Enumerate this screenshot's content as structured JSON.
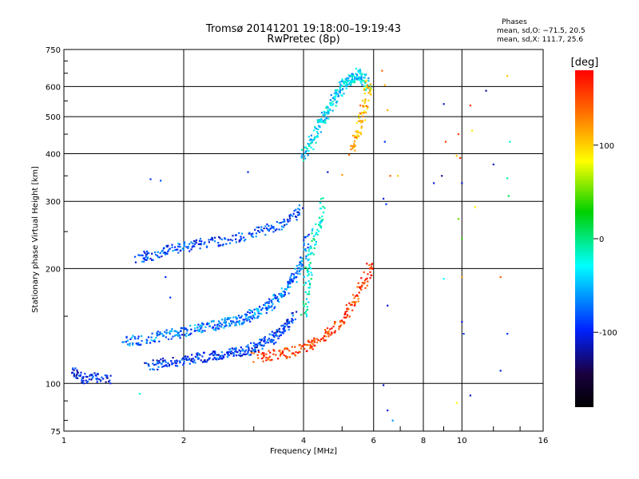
{
  "chart_data": {
    "type": "scatter",
    "title": "Tromsø 20141201 19:18:00–19:19:43",
    "subtitle": "RwPretec (8p)",
    "xlabel": "Frequency [MHz]",
    "ylabel": "Stationary phase Virtual Height [km]",
    "x_scale": "log",
    "y_scale": "log",
    "xlim": [
      1,
      16
    ],
    "ylim": [
      75,
      750
    ],
    "x_ticks": [
      1,
      2,
      4,
      6,
      8,
      10,
      16
    ],
    "y_ticks": [
      75,
      100,
      200,
      300,
      400,
      500,
      600,
      750
    ],
    "stats_title": "Phases",
    "stats_lines": [
      "mean, sd,O: −71.5, 20.5",
      "mean, sd,X: 111.7, 25.6"
    ],
    "colorbar": {
      "label": "[deg]",
      "ticks": [
        100,
        0,
        -100
      ],
      "range": [
        -180,
        180
      ]
    },
    "traces": [
      {
        "f": [
          1.05,
          1.08,
          1.12,
          1.18,
          1.25,
          1.3
        ],
        "h": [
          108,
          104,
          103,
          104,
          103,
          103
        ],
        "phase": -100
      },
      {
        "f": [
          1.5,
          1.6,
          1.7,
          1.8,
          1.9,
          2.0,
          2.1,
          2.2,
          2.4,
          2.6,
          2.8,
          3.0,
          3.2,
          3.4,
          3.6,
          3.8,
          3.95
        ],
        "h": [
          213,
          215,
          218,
          222,
          225,
          228,
          230,
          232,
          236,
          238,
          242,
          247,
          252,
          258,
          265,
          275,
          287
        ],
        "phase": -85
      },
      {
        "f": [
          1.4,
          1.5,
          1.6,
          1.7,
          1.8,
          1.9,
          2.0,
          2.1,
          2.2,
          2.3,
          2.4,
          2.5,
          2.6,
          2.7,
          2.8,
          2.9,
          3.0,
          3.1,
          3.2,
          3.3,
          3.4,
          3.5,
          3.6,
          3.7,
          3.8,
          3.9,
          4.0,
          4.1
        ],
        "h": [
          128,
          130,
          130,
          132,
          134,
          135,
          136,
          138,
          140,
          141,
          142,
          144,
          145,
          146,
          148,
          150,
          152,
          155,
          158,
          161,
          165,
          170,
          175,
          182,
          190,
          200,
          215,
          245
        ],
        "phase": -70
      },
      {
        "f": [
          1.6,
          1.7,
          1.8,
          1.9,
          2.0,
          2.1,
          2.2,
          2.3,
          2.4,
          2.5,
          2.6,
          2.7,
          2.8,
          2.9,
          3.0,
          3.1,
          3.2,
          3.3,
          3.4,
          3.5,
          3.6,
          3.7,
          3.8
        ],
        "h": [
          110,
          112,
          113,
          114,
          115,
          116,
          117,
          118,
          118,
          119,
          120,
          121,
          121,
          122,
          124,
          126,
          128,
          130,
          134,
          137,
          141,
          146,
          150
        ],
        "phase": -90
      },
      {
        "f": [
          3.0,
          3.2,
          3.4,
          3.6,
          3.8,
          4.0,
          4.2,
          4.4,
          4.6,
          4.8,
          5.0,
          5.2,
          5.4,
          5.6,
          5.8,
          5.9
        ],
        "h": [
          117,
          118,
          119,
          120,
          122,
          124,
          127,
          131,
          135,
          141,
          147,
          155,
          165,
          178,
          195,
          210
        ],
        "phase": 155
      },
      {
        "f": [
          4.0,
          4.1,
          4.2,
          4.3,
          4.4,
          4.5,
          4.6,
          4.7,
          4.8,
          4.9,
          5.0,
          5.1,
          5.2,
          5.3,
          5.4,
          5.5,
          5.6,
          5.7,
          5.8
        ],
        "h": [
          390,
          410,
          430,
          460,
          480,
          500,
          520,
          540,
          560,
          580,
          600,
          610,
          620,
          630,
          640,
          650,
          640,
          620,
          590
        ],
        "phase": -40
      },
      {
        "f": [
          5.3,
          5.4,
          5.5,
          5.6,
          5.7,
          5.8,
          5.85
        ],
        "h": [
          400,
          430,
          460,
          500,
          540,
          580,
          620
        ],
        "phase": 110
      },
      {
        "f": [
          4.0,
          4.05,
          4.1,
          4.15,
          4.2,
          4.3,
          4.4,
          4.5
        ],
        "h": [
          150,
          170,
          190,
          210,
          230,
          250,
          270,
          300
        ],
        "phase": -20
      }
    ],
    "scattered": [
      {
        "f": 1.65,
        "h": 343,
        "phase": -90
      },
      {
        "f": 1.75,
        "h": 340,
        "phase": -80
      },
      {
        "f": 2.9,
        "h": 358,
        "phase": -100
      },
      {
        "f": 1.55,
        "h": 94,
        "phase": -20
      },
      {
        "f": 1.8,
        "h": 190,
        "phase": -95
      },
      {
        "f": 1.85,
        "h": 168,
        "phase": -90
      },
      {
        "f": 4.6,
        "h": 358,
        "phase": -110
      },
      {
        "f": 5.0,
        "h": 352,
        "phase": 120
      },
      {
        "f": 6.3,
        "h": 660,
        "phase": 140
      },
      {
        "f": 6.4,
        "h": 605,
        "phase": 110
      },
      {
        "f": 6.5,
        "h": 520,
        "phase": 110
      },
      {
        "f": 6.4,
        "h": 430,
        "phase": -90
      },
      {
        "f": 6.6,
        "h": 350,
        "phase": 140
      },
      {
        "f": 6.35,
        "h": 305,
        "phase": -100
      },
      {
        "f": 6.45,
        "h": 295,
        "phase": -90
      },
      {
        "f": 6.5,
        "h": 160,
        "phase": -110
      },
      {
        "f": 6.35,
        "h": 99,
        "phase": -110
      },
      {
        "f": 6.5,
        "h": 85,
        "phase": -100
      },
      {
        "f": 6.7,
        "h": 80,
        "phase": -60
      },
      {
        "f": 6.9,
        "h": 350,
        "phase": 100
      },
      {
        "f": 8.5,
        "h": 335,
        "phase": -110
      },
      {
        "f": 8.9,
        "h": 350,
        "phase": -120
      },
      {
        "f": 9.0,
        "h": 540,
        "phase": -110
      },
      {
        "f": 9.1,
        "h": 430,
        "phase": 150
      },
      {
        "f": 9.0,
        "h": 188,
        "phase": -30
      },
      {
        "f": 9.8,
        "h": 450,
        "phase": 150
      },
      {
        "f": 9.7,
        "h": 395,
        "phase": 100
      },
      {
        "f": 9.9,
        "h": 390,
        "phase": 160
      },
      {
        "f": 10.0,
        "h": 335,
        "phase": -110
      },
      {
        "f": 9.8,
        "h": 270,
        "phase": 50
      },
      {
        "f": 10.0,
        "h": 240,
        "phase": 40
      },
      {
        "f": 10.0,
        "h": 190,
        "phase": 120
      },
      {
        "f": 10.0,
        "h": 145,
        "phase": -100
      },
      {
        "f": 10.1,
        "h": 135,
        "phase": -90
      },
      {
        "f": 9.7,
        "h": 89,
        "phase": 80
      },
      {
        "f": 10.5,
        "h": 535,
        "phase": 160
      },
      {
        "f": 10.6,
        "h": 460,
        "phase": 90
      },
      {
        "f": 10.8,
        "h": 290,
        "phase": 80
      },
      {
        "f": 10.5,
        "h": 93,
        "phase": -110
      },
      {
        "f": 11.5,
        "h": 585,
        "phase": -120
      },
      {
        "f": 12.0,
        "h": 375,
        "phase": -110
      },
      {
        "f": 12.5,
        "h": 190,
        "phase": 140
      },
      {
        "f": 12.5,
        "h": 108,
        "phase": -100
      },
      {
        "f": 13.0,
        "h": 640,
        "phase": 100
      },
      {
        "f": 13.2,
        "h": 430,
        "phase": -20
      },
      {
        "f": 13.0,
        "h": 345,
        "phase": -10
      },
      {
        "f": 13.1,
        "h": 310,
        "phase": 10
      },
      {
        "f": 13.0,
        "h": 135,
        "phase": -90
      }
    ]
  }
}
